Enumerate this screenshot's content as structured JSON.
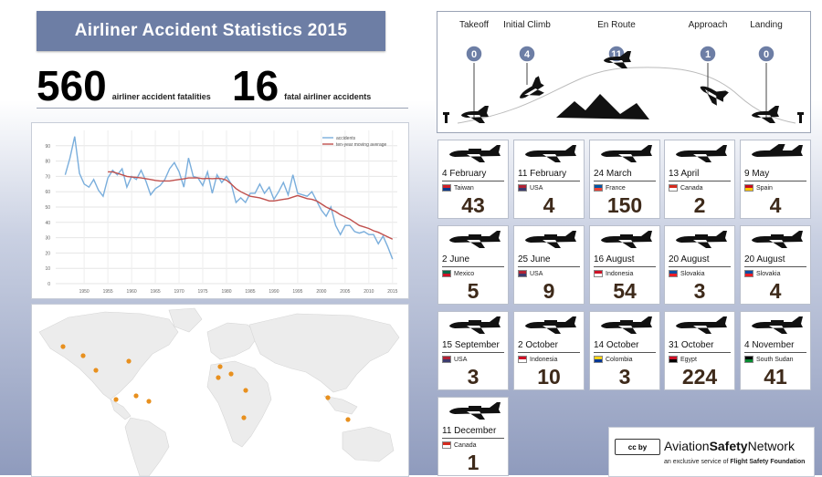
{
  "header": {
    "title": "Airliner Accident Statistics 2015"
  },
  "stats": {
    "fatalities": {
      "value": "560",
      "label": "airliner accident fatalities"
    },
    "accidents": {
      "value": "16",
      "label": "fatal airliner accidents"
    }
  },
  "chart_data": {
    "type": "line",
    "x": [
      1946,
      1947,
      1948,
      1949,
      1950,
      1951,
      1952,
      1953,
      1954,
      1955,
      1956,
      1957,
      1958,
      1959,
      1960,
      1961,
      1962,
      1963,
      1964,
      1965,
      1966,
      1967,
      1968,
      1969,
      1970,
      1971,
      1972,
      1973,
      1974,
      1975,
      1976,
      1977,
      1978,
      1979,
      1980,
      1981,
      1982,
      1983,
      1984,
      1985,
      1986,
      1987,
      1988,
      1989,
      1990,
      1991,
      1992,
      1993,
      1994,
      1995,
      1996,
      1997,
      1998,
      1999,
      2000,
      2001,
      2002,
      2003,
      2004,
      2005,
      2006,
      2007,
      2008,
      2009,
      2010,
      2011,
      2012,
      2013,
      2014,
      2015
    ],
    "series": [
      {
        "name": "accidents",
        "color": "#7aaedc",
        "values": [
          71,
          82,
          96,
          72,
          65,
          63,
          68,
          61,
          57,
          69,
          74,
          71,
          75,
          63,
          70,
          68,
          74,
          67,
          58,
          62,
          64,
          68,
          75,
          79,
          73,
          63,
          82,
          70,
          69,
          64,
          73,
          59,
          71,
          66,
          70,
          65,
          53,
          56,
          53,
          59,
          59,
          65,
          59,
          63,
          55,
          60,
          66,
          58,
          71,
          59,
          58,
          57,
          60,
          54,
          48,
          44,
          50,
          38,
          32,
          38,
          38,
          34,
          33,
          34,
          32,
          32,
          26,
          31,
          24,
          16
        ]
      },
      {
        "name": "ten-year moving average",
        "color": "#c0504d",
        "values": [
          null,
          null,
          null,
          null,
          null,
          null,
          null,
          null,
          null,
          73,
          73,
          72,
          71,
          70,
          69.6,
          69.4,
          69,
          68.5,
          68,
          67.4,
          67,
          67,
          67,
          67.5,
          68,
          68.4,
          69,
          69,
          69,
          68.5,
          68.7,
          68.5,
          68.7,
          68.5,
          67.5,
          65,
          62,
          60,
          58.5,
          57,
          56.5,
          56,
          55,
          54,
          54,
          54.5,
          55,
          55.5,
          56.5,
          57.5,
          56.5,
          55.5,
          55,
          54,
          52,
          50,
          48.5,
          47,
          45,
          43.5,
          42,
          40,
          38,
          37,
          36,
          34.5,
          33.5,
          32,
          30.5,
          29
        ]
      }
    ],
    "xlim": [
      1944,
      2016
    ],
    "ylim": [
      0,
      100
    ],
    "xticks": [
      "1950",
      "1955",
      "1960",
      "1965",
      "1970",
      "1975",
      "1980",
      "1985",
      "1990",
      "1995",
      "2000",
      "2005",
      "2010",
      "2015"
    ],
    "yticks": [
      "0",
      "10",
      "20",
      "30",
      "40",
      "50",
      "60",
      "70",
      "80",
      "90"
    ],
    "grid": true,
    "legend": "top-right"
  },
  "phases": [
    {
      "name": "Takeoff",
      "count": "0"
    },
    {
      "name": "Initial Climb",
      "count": "4"
    },
    {
      "name": "En Route",
      "count": "11"
    },
    {
      "name": "Approach",
      "count": "1"
    },
    {
      "name": "Landing",
      "count": "0"
    }
  ],
  "accidents": [
    {
      "date": "4 February",
      "country": "Taiwan",
      "fatalities": "43",
      "flag": [
        "#d21f26",
        "#0b3a8c"
      ],
      "plane": "turboprop"
    },
    {
      "date": "11 February",
      "country": "USA",
      "fatalities": "4",
      "flag": [
        "#b22234",
        "#3c3b6e"
      ],
      "plane": "jet"
    },
    {
      "date": "24 March",
      "country": "France",
      "fatalities": "150",
      "flag": [
        "#0055a4",
        "#ef4135"
      ],
      "plane": "jet"
    },
    {
      "date": "13 April",
      "country": "Canada",
      "fatalities": "2",
      "flag": [
        "#d52b1e",
        "#ffffff"
      ],
      "plane": "jet"
    },
    {
      "date": "9 May",
      "country": "Spain",
      "fatalities": "4",
      "flag": [
        "#c60b1e",
        "#ffc400"
      ],
      "plane": "military"
    },
    {
      "date": "2 June",
      "country": "Mexico",
      "fatalities": "5",
      "flag": [
        "#006847",
        "#ce1126"
      ],
      "plane": "turboprop"
    },
    {
      "date": "25 June",
      "country": "USA",
      "fatalities": "9",
      "flag": [
        "#b22234",
        "#3c3b6e"
      ],
      "plane": "prop"
    },
    {
      "date": "16 August",
      "country": "Indonesia",
      "fatalities": "54",
      "flag": [
        "#ce1126",
        "#ffffff"
      ],
      "plane": "turboprop"
    },
    {
      "date": "20 August",
      "country": "Slovakia",
      "fatalities": "3",
      "flag": [
        "#0b4ea2",
        "#ee1c25"
      ],
      "plane": "prop"
    },
    {
      "date": "20 August",
      "country": "Slovakia",
      "fatalities": "4",
      "flag": [
        "#0b4ea2",
        "#ee1c25"
      ],
      "plane": "prop"
    },
    {
      "date": "15 September",
      "country": "USA",
      "fatalities": "3",
      "flag": [
        "#b22234",
        "#3c3b6e"
      ],
      "plane": "prop"
    },
    {
      "date": "2 October",
      "country": "Indonesia",
      "fatalities": "10",
      "flag": [
        "#ce1126",
        "#ffffff"
      ],
      "plane": "prop"
    },
    {
      "date": "14 October",
      "country": "Colombia",
      "fatalities": "3",
      "flag": [
        "#fcd116",
        "#003893"
      ],
      "plane": "prop"
    },
    {
      "date": "31 October",
      "country": "Egypt",
      "fatalities": "224",
      "flag": [
        "#ce1126",
        "#000000"
      ],
      "plane": "jet"
    },
    {
      "date": "4 November",
      "country": "South Sudan",
      "fatalities": "41",
      "flag": [
        "#000000",
        "#078930"
      ],
      "plane": "turboprop"
    },
    {
      "date": "11 December",
      "country": "Canada",
      "fatalities": "1",
      "flag": [
        "#d52b1e",
        "#ffffff"
      ],
      "plane": "prop"
    }
  ],
  "footer": {
    "cc": "cc by",
    "brand_a": "Aviation",
    "brand_b": "Safety",
    "brand_c": "Network",
    "sub_a": "an exclusive service of",
    "sub_b": "Flight Safety Foundation"
  }
}
